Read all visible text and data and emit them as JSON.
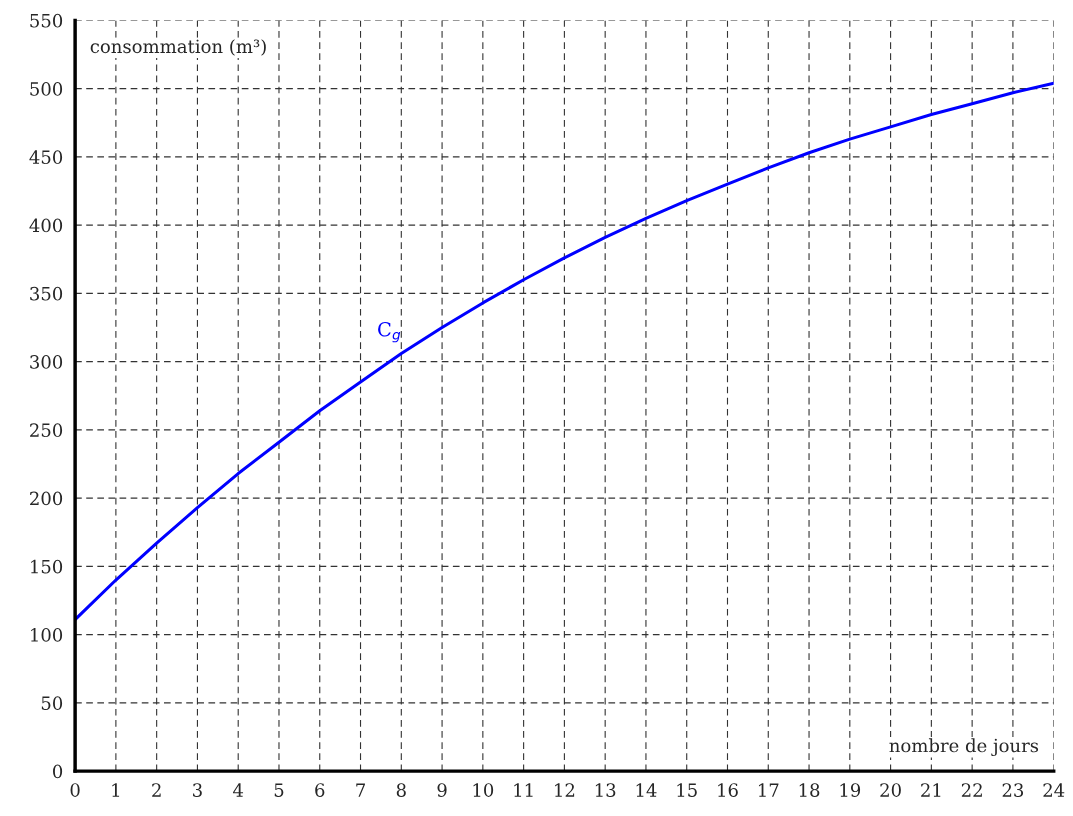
{
  "chart_data": {
    "type": "line",
    "xlabel": "nombre de jours",
    "ylabel": "consommation (m³)",
    "x": [
      0,
      1,
      2,
      3,
      4,
      5,
      6,
      7,
      8,
      9,
      10,
      11,
      12,
      13,
      14,
      15,
      16,
      17,
      18,
      19,
      20,
      21,
      22,
      23,
      24
    ],
    "series": [
      {
        "name": "C$_{g}$",
        "color": "#0000ff",
        "values": [
          111,
          140,
          167,
          193,
          218,
          241,
          264,
          285,
          306,
          325,
          343,
          360,
          376,
          391,
          405,
          418,
          430,
          442,
          453,
          463,
          472,
          481,
          489,
          497,
          504
        ]
      }
    ],
    "xlim": [
      0,
      24
    ],
    "ylim": [
      0,
      550
    ],
    "xticks": [
      0,
      1,
      2,
      3,
      4,
      5,
      6,
      7,
      8,
      9,
      10,
      11,
      12,
      13,
      14,
      15,
      16,
      17,
      18,
      19,
      20,
      21,
      22,
      23,
      24
    ],
    "yticks": [
      0,
      50,
      100,
      150,
      200,
      250,
      300,
      350,
      400,
      450,
      500,
      550
    ],
    "grid": true,
    "line_style": "solid",
    "marker": "none",
    "legend": false
  }
}
